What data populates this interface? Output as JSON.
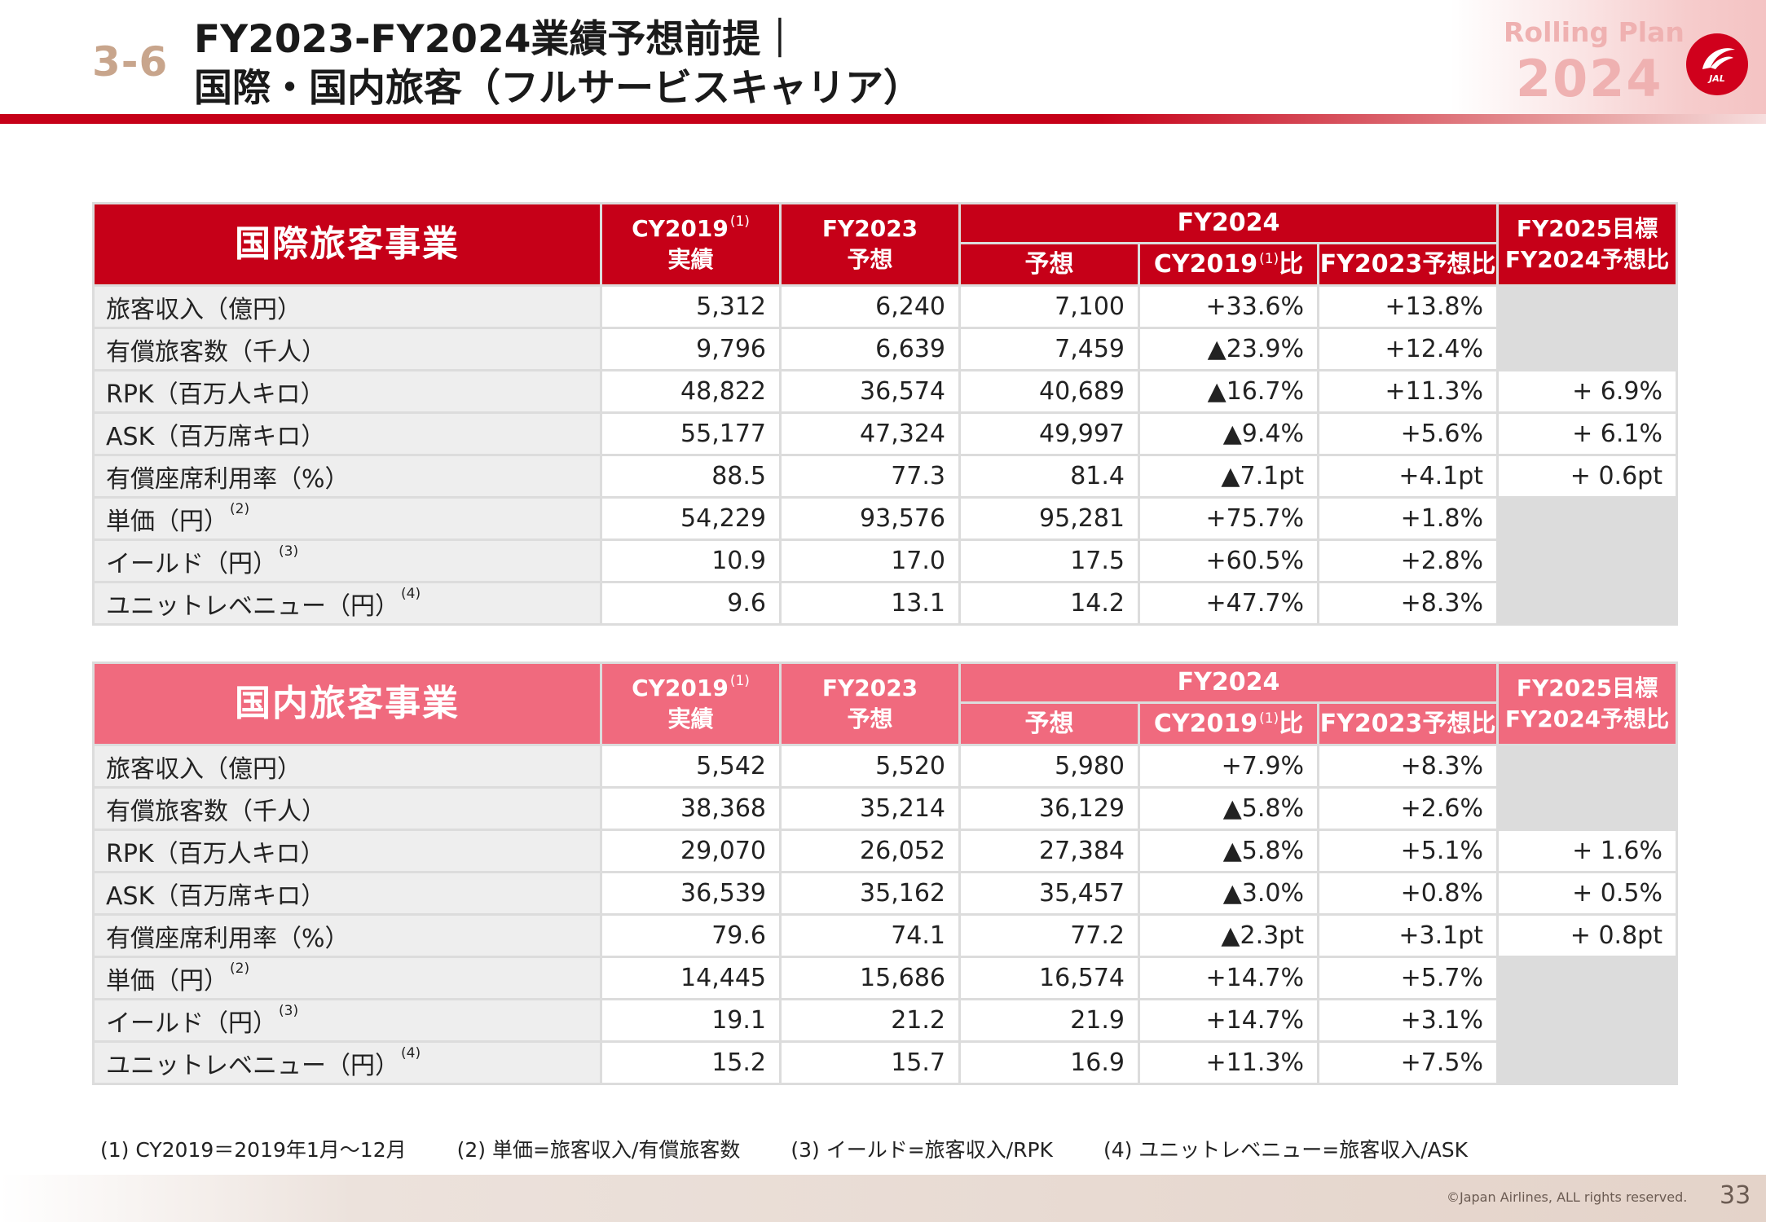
{
  "header": {
    "section_number": "3-6",
    "title_line1": "FY2023-FY2024業績予想前提｜",
    "title_line2": "国際・国内旅客（フルサービスキャリア）",
    "rolling_plan_label": "Rolling Plan",
    "rolling_plan_year": "2024",
    "logo_text": "JAL",
    "logo_icon": "jal-crane-icon",
    "accent_color": "#c60018"
  },
  "columns": {
    "cy2019_line1": "CY2019",
    "cy2019_note": "(1)",
    "cy2019_line2": "実績",
    "fy2023_line1": "FY2023",
    "fy2023_line2": "予想",
    "fy2024": "FY2024",
    "fy2024_forecast": "予想",
    "fy2024_vs_cy2019_prefix": "CY2019",
    "fy2024_vs_cy2019_note": "(1)",
    "fy2024_vs_cy2019_suffix": "比",
    "fy2024_vs_fy2023": "FY2023予想比",
    "fy2025_line1": "FY2025目標",
    "fy2025_line2": "FY2024予想比"
  },
  "international": {
    "title": "国際旅客事業",
    "header_color": "#c60018",
    "rows": [
      {
        "label": "旅客収入（億円）",
        "note": "",
        "cy2019": "5,312",
        "fy2023": "6,240",
        "fy2024": "7,100",
        "vs_cy2019": "+33.6%",
        "vs_fy2023": "+13.8%",
        "fy2025": ""
      },
      {
        "label": "有償旅客数（千人）",
        "note": "",
        "cy2019": "9,796",
        "fy2023": "6,639",
        "fy2024": "7,459",
        "vs_cy2019": "▲23.9%",
        "vs_fy2023": "+12.4%",
        "fy2025": ""
      },
      {
        "label": "RPK（百万人キロ）",
        "note": "",
        "cy2019": "48,822",
        "fy2023": "36,574",
        "fy2024": "40,689",
        "vs_cy2019": "▲16.7%",
        "vs_fy2023": "+11.3%",
        "fy2025": "+ 6.9%"
      },
      {
        "label": "ASK（百万席キロ）",
        "note": "",
        "cy2019": "55,177",
        "fy2023": "47,324",
        "fy2024": "49,997",
        "vs_cy2019": "▲9.4%",
        "vs_fy2023": "+5.6%",
        "fy2025": "+ 6.1%"
      },
      {
        "label": "有償座席利用率（%）",
        "note": "",
        "cy2019": "88.5",
        "fy2023": "77.3",
        "fy2024": "81.4",
        "vs_cy2019": "▲7.1pt",
        "vs_fy2023": "+4.1pt",
        "fy2025": "+ 0.6pt"
      },
      {
        "label": "単価（円）",
        "note": "(2)",
        "cy2019": "54,229",
        "fy2023": "93,576",
        "fy2024": "95,281",
        "vs_cy2019": "+75.7%",
        "vs_fy2023": "+1.8%",
        "fy2025": ""
      },
      {
        "label": "イールド（円）",
        "note": "(3)",
        "cy2019": "10.9",
        "fy2023": "17.0",
        "fy2024": "17.5",
        "vs_cy2019": "+60.5%",
        "vs_fy2023": "+2.8%",
        "fy2025": ""
      },
      {
        "label": "ユニットレベニュー（円）",
        "note": "(4)",
        "cy2019": "9.6",
        "fy2023": "13.1",
        "fy2024": "14.2",
        "vs_cy2019": "+47.7%",
        "vs_fy2023": "+8.3%",
        "fy2025": ""
      }
    ]
  },
  "domestic": {
    "title": "国内旅客事業",
    "header_color": "#f06a7e",
    "rows": [
      {
        "label": "旅客収入（億円）",
        "note": "",
        "cy2019": "5,542",
        "fy2023": "5,520",
        "fy2024": "5,980",
        "vs_cy2019": "+7.9%",
        "vs_fy2023": "+8.3%",
        "fy2025": ""
      },
      {
        "label": "有償旅客数（千人）",
        "note": "",
        "cy2019": "38,368",
        "fy2023": "35,214",
        "fy2024": "36,129",
        "vs_cy2019": "▲5.8%",
        "vs_fy2023": "+2.6%",
        "fy2025": ""
      },
      {
        "label": "RPK（百万人キロ）",
        "note": "",
        "cy2019": "29,070",
        "fy2023": "26,052",
        "fy2024": "27,384",
        "vs_cy2019": "▲5.8%",
        "vs_fy2023": "+5.1%",
        "fy2025": "+ 1.6%"
      },
      {
        "label": "ASK（百万席キロ）",
        "note": "",
        "cy2019": "36,539",
        "fy2023": "35,162",
        "fy2024": "35,457",
        "vs_cy2019": "▲3.0%",
        "vs_fy2023": "+0.8%",
        "fy2025": "+ 0.5%"
      },
      {
        "label": "有償座席利用率（%）",
        "note": "",
        "cy2019": "79.6",
        "fy2023": "74.1",
        "fy2024": "77.2",
        "vs_cy2019": "▲2.3pt",
        "vs_fy2023": "+3.1pt",
        "fy2025": "+ 0.8pt"
      },
      {
        "label": "単価（円）",
        "note": "(2)",
        "cy2019": "14,445",
        "fy2023": "15,686",
        "fy2024": "16,574",
        "vs_cy2019": "+14.7%",
        "vs_fy2023": "+5.7%",
        "fy2025": ""
      },
      {
        "label": "イールド（円）",
        "note": "(3)",
        "cy2019": "19.1",
        "fy2023": "21.2",
        "fy2024": "21.9",
        "vs_cy2019": "+14.7%",
        "vs_fy2023": "+3.1%",
        "fy2025": ""
      },
      {
        "label": "ユニットレベニュー（円）",
        "note": "(4)",
        "cy2019": "15.2",
        "fy2023": "15.7",
        "fy2024": "16.9",
        "vs_cy2019": "+11.3%",
        "vs_fy2023": "+7.5%",
        "fy2025": ""
      }
    ]
  },
  "footnotes": [
    "(1) CY2019＝2019年1月～12月",
    "(2) 単価=旅客収入/有償旅客数",
    "(3) イールド=旅客収入/RPK",
    "(4) ユニットレベニュー=旅客収入/ASK"
  ],
  "footer": {
    "copyright": "©Japan Airlines, ALL rights reserved.",
    "page_number": "33"
  }
}
